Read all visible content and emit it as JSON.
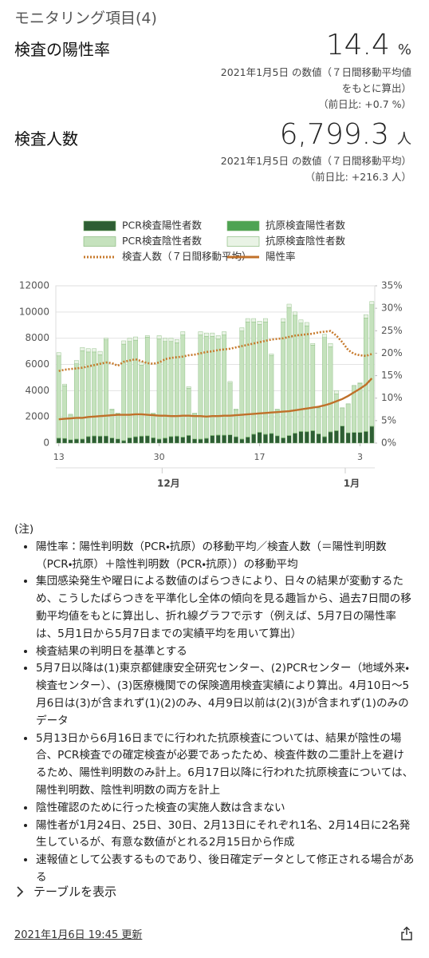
{
  "header": {
    "title": "モニタリング項目(4)"
  },
  "metrics": [
    {
      "label": "検査の陽性率",
      "value": "14.4",
      "unit": "%",
      "note": "2021年1月5日 の数値（７日間移動平均値をもとに算出）",
      "change": "（前日比: +0.7 %）"
    },
    {
      "label": "検査人数",
      "value": "6,799.3",
      "unit": "人",
      "note": "2021年1月5日 の数値（７日間移動平均）",
      "change": "（前日比: +216.3 人）"
    }
  ],
  "chart_data": {
    "type": "bar",
    "stacked": true,
    "grid": true,
    "categories": [
      "13",
      null,
      null,
      null,
      null,
      null,
      null,
      null,
      null,
      null,
      null,
      null,
      null,
      null,
      null,
      null,
      null,
      "30",
      null,
      null,
      null,
      null,
      null,
      null,
      null,
      null,
      null,
      null,
      null,
      null,
      null,
      null,
      null,
      null,
      "17",
      null,
      null,
      null,
      null,
      null,
      null,
      null,
      null,
      null,
      null,
      null,
      null,
      null,
      null,
      null,
      null,
      "3",
      null,
      null
    ],
    "month_labels": [
      "12月",
      "1月"
    ],
    "ylim": [
      0,
      12000
    ],
    "yticks": [
      0,
      2000,
      4000,
      6000,
      8000,
      10000,
      12000
    ],
    "y2lim": [
      0,
      35
    ],
    "y2ticks": [
      {
        "value": 0,
        "label": "0%"
      },
      {
        "value": 5,
        "label": "5%"
      },
      {
        "value": 10,
        "label": "10%"
      },
      {
        "value": 15,
        "label": "15%"
      },
      {
        "value": 20,
        "label": "20%"
      },
      {
        "value": 25,
        "label": "25%"
      },
      {
        "value": 30,
        "label": "30%"
      },
      {
        "value": 35,
        "label": "35%"
      }
    ],
    "series": [
      {
        "name": "PCR検査陽性者数",
        "type": "bar",
        "color": "#2e5e34",
        "values": [
          370,
          350,
          250,
          300,
          300,
          490,
          530,
          520,
          530,
          390,
          310,
          180,
          390,
          470,
          520,
          550,
          400,
          300,
          370,
          490,
          520,
          440,
          580,
          310,
          290,
          350,
          570,
          600,
          590,
          620,
          480,
          300,
          450,
          670,
          810,
          660,
          730,
          550,
          390,
          560,
          740,
          880,
          860,
          940,
          700,
          480,
          850,
          940,
          1300,
          780,
          810,
          810,
          880,
          1270
        ]
      },
      {
        "name": "抗原検査陽性者数",
        "type": "bar",
        "color": "#4ea353",
        "values": [
          25,
          15,
          8,
          25,
          25,
          25,
          25,
          25,
          15,
          8,
          8,
          25,
          25,
          25,
          25,
          15,
          8,
          25,
          25,
          25,
          25,
          25,
          15,
          8,
          25,
          25,
          25,
          25,
          25,
          15,
          8,
          25,
          25,
          25,
          25,
          25,
          15,
          8,
          25,
          25,
          25,
          25,
          25,
          15,
          8,
          25,
          25,
          25,
          8,
          8,
          8,
          8,
          25,
          25
        ]
      },
      {
        "name": "PCR検査陰性者数",
        "type": "bar",
        "color": "#c5e2bd",
        "values": [
          6255,
          4015,
          1882,
          5725,
          6725,
          6435,
          6395,
          6205,
          7335,
          2142,
          1922,
          7345,
          7335,
          7355,
          5405,
          7515,
          1832,
          7625,
          7355,
          7235,
          7105,
          7785,
          3585,
          1922,
          7935,
          7775,
          7555,
          7325,
          7635,
          3945,
          2052,
          8225,
          8775,
          8555,
          8215,
          8565,
          5935,
          1982,
          8835,
          9765,
          8985,
          8245,
          8065,
          6525,
          1932,
          7545,
          6475,
          2785,
          1332,
          2152,
          3522,
          3722,
          8645,
          9255
        ]
      },
      {
        "name": "抗原検査陰性者数",
        "type": "bar",
        "color": "#e9f3e5",
        "values": [
          250,
          120,
          60,
          250,
          250,
          250,
          250,
          250,
          120,
          60,
          60,
          250,
          250,
          250,
          250,
          120,
          60,
          250,
          250,
          250,
          250,
          250,
          120,
          60,
          250,
          250,
          250,
          250,
          250,
          120,
          60,
          250,
          250,
          250,
          250,
          250,
          120,
          60,
          250,
          250,
          250,
          250,
          250,
          120,
          60,
          250,
          250,
          250,
          60,
          60,
          60,
          60,
          250,
          250
        ]
      },
      {
        "name": "検査人数（７日間移動平均）",
        "type": "line",
        "dashed": true,
        "color": "#c77a2c",
        "values": [
          5500,
          5600,
          5650,
          5700,
          5750,
          5850,
          5950,
          6050,
          6150,
          6100,
          5900,
          6200,
          6300,
          6400,
          6250,
          6100,
          6050,
          6150,
          6400,
          6500,
          6550,
          6600,
          6700,
          6750,
          6850,
          6950,
          7000,
          7100,
          7150,
          7200,
          7300,
          7400,
          7500,
          7600,
          7700,
          7800,
          7900,
          7950,
          8000,
          8100,
          8200,
          8250,
          8300,
          8350,
          8450,
          8500,
          8550,
          8200,
          7700,
          7100,
          6800,
          6700,
          6650,
          6799.3
        ]
      },
      {
        "name": "陽性率",
        "type": "line",
        "axis": "y2",
        "color": "#c0702a",
        "values": [
          5.3,
          5.4,
          5.5,
          5.6,
          5.6,
          5.8,
          5.9,
          6.0,
          6.1,
          6.2,
          6.3,
          6.3,
          6.3,
          6.4,
          6.4,
          6.3,
          6.2,
          6.1,
          6.1,
          6.0,
          6.0,
          6.1,
          6.1,
          6.0,
          6.0,
          5.9,
          6.0,
          6.0,
          6.1,
          6.1,
          6.2,
          6.3,
          6.4,
          6.5,
          6.6,
          6.7,
          6.8,
          6.9,
          7.0,
          7.1,
          7.3,
          7.5,
          7.7,
          7.9,
          8.1,
          8.4,
          8.8,
          9.3,
          9.8,
          10.5,
          11.3,
          12.1,
          13.0,
          14.4
        ]
      }
    ]
  },
  "notes": {
    "heading": "(注)",
    "items": [
      "陽性率：陽性判明数（PCR・抗原）の移動平均／検査人数（＝陽性判明数（PCR・抗原）＋陰性判明数（PCR・抗原））の移動平均",
      "集団感染発生や曜日による数値のばらつきにより、日々の結果が変動するため、こうしたばらつきを平準化し全体の傾向を見る趣旨から、過去7日間の移動平均値をもとに算出し、折れ線グラフで示す（例えば、5月7日の陽性率は、5月1日から5月7日までの実績平均を用いて算出）",
      "検査結果の判明日を基準とする",
      "5月7日以降は(1)東京都健康安全研究センター、(2)PCRセンター（地域外来・検査センター）、(3)医療機関での保険適用検査実績により算出。4月10日〜5月6日は(3)が含まれず(1)(2)のみ、4月9日以前は(2)(3)が含まれず(1)のみのデータ",
      "5月13日から6月16日までに行われた抗原検査については、結果が陰性の場合、PCR検査での確定検査が必要であったため、検査件数の二重計上を避けるため、陽性判明数のみ計上。6月17日以降に行われた抗原検査については、陽性判明数、陰性判明数の両方を計上",
      "陰性確認のために行った検査の実施人数は含まない",
      "陽性者が1月24日、25日、30日、2月13日にそれぞれ1名、2月14日に2名発生しているが、有意な数値がとれる2月15日から作成",
      "速報値として公表するものであり、後日確定データとして修正される場合がある"
    ]
  },
  "table_toggle": "テーブルを表示",
  "footer": {
    "updated": "2021年1月6日 19:45 更新"
  }
}
